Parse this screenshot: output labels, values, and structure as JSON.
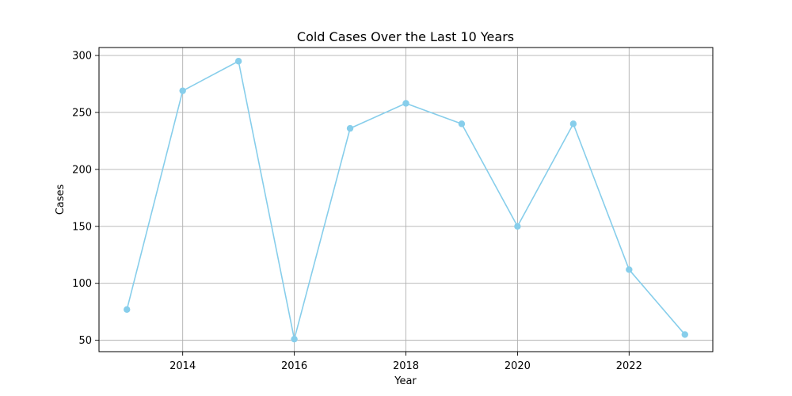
{
  "chart_data": {
    "type": "line",
    "title": "Cold Cases Over the Last 10 Years",
    "xlabel": "Year",
    "ylabel": "Cases",
    "xlim": [
      2012.5,
      2023.5
    ],
    "ylim": [
      40,
      307
    ],
    "xticks": [
      2014,
      2016,
      2018,
      2020,
      2022
    ],
    "yticks": [
      50,
      100,
      150,
      200,
      250,
      300
    ],
    "grid": true,
    "line_color": "#87ceeb",
    "series": [
      {
        "x": [
          2013,
          2014,
          2015,
          2016,
          2017,
          2018,
          2019,
          2020,
          2021,
          2022,
          2023
        ],
        "y": [
          77,
          269,
          295,
          51,
          236,
          258,
          240,
          150,
          240,
          112,
          55
        ]
      }
    ]
  }
}
